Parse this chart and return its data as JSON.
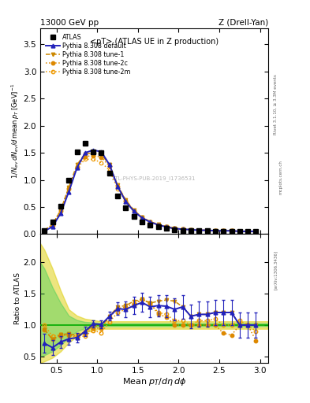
{
  "title_left": "13000 GeV pp",
  "title_right": "Z (Drell-Yan)",
  "main_title": "<pT> (ATLAS UE in Z production)",
  "xlabel": "Mean $p_T/d\\eta\\,d\\phi$",
  "ylabel_main": "1/N_{ev} dN_{ev}/d mean p_T [GeV]^{-1}",
  "ylabel_ratio": "Ratio to ATLAS",
  "watermark": "ATL-PHYS-PUB-2019_I1736531",
  "right_label_top": "Rivet 3.1.10, ≥ 3.3M events",
  "right_label_mid": "mcplots.cern.ch",
  "right_label_bot": "[arXiv:1306.3436]",
  "xlim": [
    0.3,
    3.1
  ],
  "ylim_main": [
    0.0,
    3.8
  ],
  "ylim_ratio": [
    0.4,
    2.45
  ],
  "atlas_x": [
    0.35,
    0.45,
    0.55,
    0.65,
    0.75,
    0.85,
    0.95,
    1.05,
    1.15,
    1.25,
    1.35,
    1.45,
    1.55,
    1.65,
    1.75,
    1.85,
    1.95,
    2.05,
    2.15,
    2.25,
    2.35,
    2.45,
    2.55,
    2.65,
    2.75,
    2.85,
    2.95
  ],
  "atlas_y": [
    0.07,
    0.22,
    0.52,
    1.0,
    1.52,
    1.67,
    1.52,
    1.5,
    1.12,
    0.7,
    0.48,
    0.32,
    0.22,
    0.17,
    0.13,
    0.1,
    0.08,
    0.07,
    0.07,
    0.06,
    0.06,
    0.05,
    0.05,
    0.05,
    0.05,
    0.05,
    0.05
  ],
  "py_default_x": [
    0.35,
    0.45,
    0.55,
    0.65,
    0.75,
    0.85,
    0.95,
    1.05,
    1.15,
    1.25,
    1.35,
    1.45,
    1.55,
    1.65,
    1.75,
    1.85,
    1.95,
    2.05,
    2.15,
    2.25,
    2.35,
    2.45,
    2.55,
    2.65,
    2.75,
    2.85,
    2.95
  ],
  "py_default_y": [
    0.05,
    0.14,
    0.38,
    0.78,
    1.22,
    1.5,
    1.55,
    1.52,
    1.28,
    0.88,
    0.6,
    0.42,
    0.3,
    0.22,
    0.17,
    0.13,
    0.1,
    0.09,
    0.08,
    0.07,
    0.07,
    0.06,
    0.06,
    0.06,
    0.05,
    0.05,
    0.05
  ],
  "py_tune1_x": [
    0.35,
    0.45,
    0.55,
    0.65,
    0.75,
    0.85,
    0.95,
    1.05,
    1.15,
    1.25,
    1.35,
    1.45,
    1.55,
    1.65,
    1.75,
    1.85,
    1.95,
    2.05,
    2.15,
    2.25,
    2.35,
    2.45,
    2.55,
    2.65,
    2.75,
    2.85,
    2.95
  ],
  "py_tune1_y": [
    0.065,
    0.17,
    0.44,
    0.86,
    1.28,
    1.48,
    1.5,
    1.47,
    1.28,
    0.9,
    0.63,
    0.44,
    0.31,
    0.23,
    0.18,
    0.14,
    0.11,
    0.09,
    0.08,
    0.07,
    0.07,
    0.06,
    0.06,
    0.06,
    0.05,
    0.05,
    0.05
  ],
  "py_tune2c_x": [
    0.35,
    0.45,
    0.55,
    0.65,
    0.75,
    0.85,
    0.95,
    1.05,
    1.15,
    1.25,
    1.35,
    1.45,
    1.55,
    1.65,
    1.75,
    1.85,
    1.95,
    2.05,
    2.15,
    2.25,
    2.35,
    2.45,
    2.55,
    2.65,
    2.75,
    2.85,
    2.95
  ],
  "py_tune2c_y": [
    0.065,
    0.17,
    0.43,
    0.84,
    1.24,
    1.43,
    1.45,
    1.42,
    1.25,
    0.88,
    0.62,
    0.43,
    0.31,
    0.23,
    0.17,
    0.13,
    0.1,
    0.09,
    0.08,
    0.07,
    0.07,
    0.06,
    0.06,
    0.06,
    0.05,
    0.05,
    0.05
  ],
  "py_tune2m_x": [
    0.35,
    0.45,
    0.55,
    0.65,
    0.75,
    0.85,
    0.95,
    1.05,
    1.15,
    1.25,
    1.35,
    1.45,
    1.55,
    1.65,
    1.75,
    1.85,
    1.95,
    2.05,
    2.15,
    2.25,
    2.35,
    2.45,
    2.55,
    2.65,
    2.75,
    2.85,
    2.95
  ],
  "py_tune2m_y": [
    0.07,
    0.18,
    0.44,
    0.85,
    1.22,
    1.38,
    1.38,
    1.32,
    1.18,
    0.84,
    0.6,
    0.42,
    0.3,
    0.22,
    0.17,
    0.13,
    0.1,
    0.09,
    0.08,
    0.07,
    0.07,
    0.06,
    0.06,
    0.06,
    0.05,
    0.05,
    0.05
  ],
  "ratio_x": [
    0.35,
    0.45,
    0.55,
    0.65,
    0.75,
    0.85,
    0.95,
    1.05,
    1.15,
    1.25,
    1.35,
    1.45,
    1.55,
    1.65,
    1.75,
    1.85,
    1.95,
    2.05,
    2.15,
    2.25,
    2.35,
    2.45,
    2.55,
    2.65,
    2.75,
    2.85,
    2.95
  ],
  "ratio_default_y": [
    0.71,
    0.64,
    0.73,
    0.78,
    0.8,
    0.9,
    1.02,
    1.01,
    1.14,
    1.26,
    1.25,
    1.31,
    1.36,
    1.29,
    1.31,
    1.3,
    1.25,
    1.29,
    1.14,
    1.17,
    1.17,
    1.2,
    1.2,
    1.2,
    1.0,
    1.0,
    1.0
  ],
  "ratio_default_yerr": [
    0.15,
    0.12,
    0.1,
    0.09,
    0.08,
    0.07,
    0.06,
    0.06,
    0.07,
    0.1,
    0.12,
    0.14,
    0.15,
    0.16,
    0.17,
    0.18,
    0.18,
    0.19,
    0.19,
    0.2,
    0.2,
    0.2,
    0.2,
    0.2,
    0.2,
    0.2,
    0.2
  ],
  "ratio_tune1_y": [
    0.93,
    0.77,
    0.85,
    0.86,
    0.84,
    0.89,
    0.99,
    0.98,
    1.14,
    1.29,
    1.31,
    1.38,
    1.41,
    1.35,
    1.38,
    1.4,
    1.38,
    1.29,
    1.14,
    1.17,
    1.17,
    1.2,
    1.2,
    1.2,
    1.0,
    1.0,
    1.0
  ],
  "ratio_tune2c_y": [
    0.93,
    0.77,
    0.83,
    0.84,
    0.82,
    0.86,
    0.95,
    0.95,
    1.12,
    1.26,
    1.29,
    1.34,
    1.41,
    1.35,
    1.17,
    1.13,
    1.0,
    1.0,
    1.0,
    1.0,
    1.0,
    1.0,
    0.87,
    0.84,
    1.0,
    1.0,
    0.75
  ],
  "ratio_tune2m_y": [
    1.0,
    0.82,
    0.85,
    0.85,
    0.8,
    0.83,
    0.91,
    0.88,
    1.05,
    1.2,
    1.25,
    1.31,
    1.41,
    1.35,
    1.2,
    1.17,
    1.07,
    1.07,
    1.0,
    1.07,
    1.07,
    1.1,
    1.0,
    1.0,
    1.07,
    1.0,
    0.9
  ],
  "band_x": [
    0.3,
    0.35,
    0.45,
    0.55,
    0.65,
    0.75,
    0.85,
    0.95,
    1.05,
    1.5,
    2.0,
    2.5,
    3.1
  ],
  "band_yel_up": [
    2.3,
    2.2,
    1.9,
    1.55,
    1.25,
    1.15,
    1.1,
    1.08,
    1.06,
    1.06,
    1.06,
    1.06,
    1.06
  ],
  "band_yel_dn": [
    0.4,
    0.42,
    0.48,
    0.58,
    0.72,
    0.82,
    0.88,
    0.92,
    0.94,
    0.94,
    0.94,
    0.94,
    0.94
  ],
  "band_grn_up": [
    2.0,
    1.9,
    1.6,
    1.35,
    1.15,
    1.08,
    1.05,
    1.04,
    1.03,
    1.03,
    1.03,
    1.03,
    1.03
  ],
  "band_grn_dn": [
    0.5,
    0.52,
    0.58,
    0.68,
    0.8,
    0.9,
    0.95,
    0.97,
    0.98,
    0.98,
    0.98,
    0.98,
    0.98
  ],
  "color_blue": "#2222bb",
  "color_orange1": "#cc8800",
  "color_orange2": "#dd8800",
  "color_orange3": "#ee9900",
  "color_green": "#33cc55",
  "color_yellow": "#ddcc00",
  "alpha_green": 0.4,
  "alpha_yellow": 0.5
}
